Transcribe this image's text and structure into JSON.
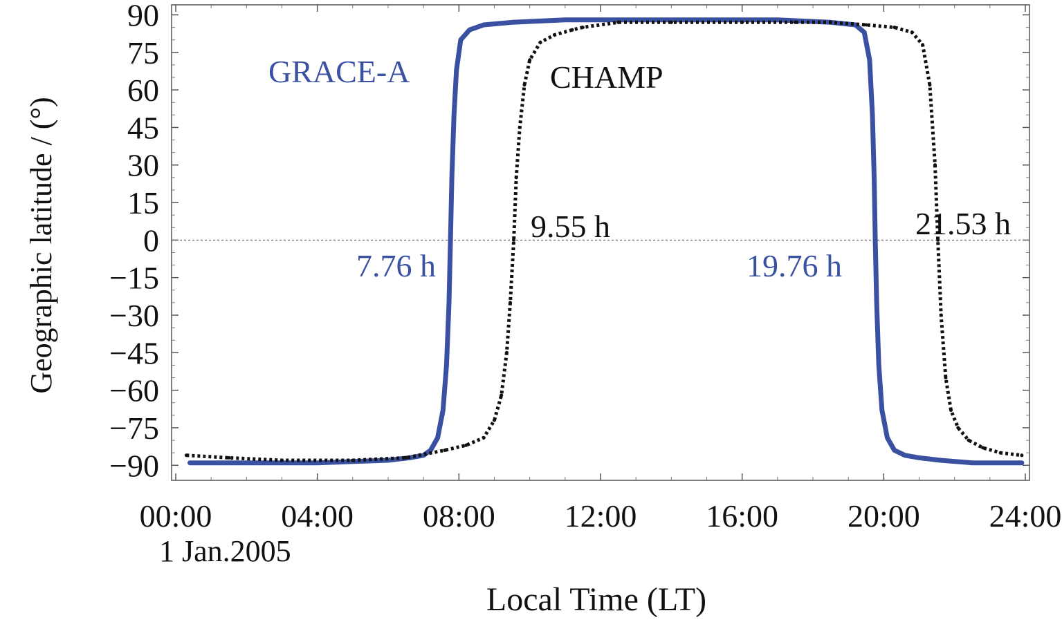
{
  "chart_data": {
    "type": "scatter",
    "title": "",
    "xlabel": "Local Time (LT)",
    "ylabel": "Geographic latitude / (°)",
    "date_label": "1 Jan.2005",
    "xlim": [
      0,
      24
    ],
    "ylim": [
      -96,
      94
    ],
    "x_ticks": [
      0,
      4,
      8,
      12,
      16,
      20,
      24
    ],
    "x_tick_labels": [
      "00:00",
      "04:00",
      "08:00",
      "12:00",
      "16:00",
      "20:00",
      "24:00"
    ],
    "y_ticks": [
      90,
      75,
      60,
      45,
      30,
      15,
      0,
      -15,
      -30,
      -45,
      -60,
      -75,
      -90
    ],
    "y_tick_labels": [
      "90",
      "75",
      "60",
      "45",
      "30",
      "15",
      "0",
      "−15",
      "−30",
      "−45",
      "−60",
      "−75",
      "−90"
    ],
    "zero_line": true,
    "series": [
      {
        "name": "GRACE-A",
        "color": "#3a50a0",
        "x": [
          0.4,
          2.0,
          4.0,
          6.0,
          6.6,
          7.0,
          7.2,
          7.4,
          7.55,
          7.65,
          7.72,
          7.76,
          7.8,
          7.86,
          7.93,
          8.05,
          8.3,
          8.7,
          9.5,
          11.0,
          13.0,
          15.0,
          17.0,
          18.5,
          19.2,
          19.45,
          19.6,
          19.68,
          19.73,
          19.76,
          19.8,
          19.86,
          19.95,
          20.1,
          20.3,
          20.6,
          21.0,
          21.6,
          22.5,
          23.9
        ],
        "y": [
          -89,
          -89,
          -89,
          -88,
          -87,
          -86,
          -84,
          -79,
          -68,
          -50,
          -25,
          0,
          25,
          50,
          68,
          80,
          84,
          86,
          87,
          88,
          88,
          88,
          88,
          87,
          86,
          83,
          72,
          50,
          25,
          0,
          -25,
          -50,
          -68,
          -79,
          -84,
          -86,
          -87,
          -88,
          -89,
          -89
        ]
      },
      {
        "name": "CHAMP",
        "color": "#111111",
        "x": [
          0.3,
          1.5,
          3.0,
          5.0,
          6.5,
          7.6,
          8.2,
          8.7,
          9.0,
          9.2,
          9.35,
          9.45,
          9.55,
          9.62,
          9.72,
          9.85,
          10.0,
          10.3,
          10.7,
          11.2,
          11.5,
          12.5,
          14.0,
          16.0,
          17.5,
          18.5,
          19.5,
          20.3,
          20.8,
          21.1,
          21.3,
          21.45,
          21.53,
          21.62,
          21.75,
          21.9,
          22.1,
          22.4,
          22.8,
          23.3,
          23.9
        ],
        "y": [
          -86,
          -87,
          -88,
          -88,
          -87,
          -84,
          -82,
          -79,
          -72,
          -62,
          -45,
          -25,
          0,
          25,
          45,
          62,
          72,
          79,
          82,
          84,
          85,
          87,
          87,
          87,
          87,
          87,
          86,
          85,
          83,
          78,
          62,
          30,
          0,
          -30,
          -55,
          -68,
          -75,
          -80,
          -83,
          -85,
          -86
        ]
      }
    ],
    "annotations": [
      {
        "text": "GRACE-A",
        "color": "#3a50a0"
      },
      {
        "text": "CHAMP",
        "color": "#111111"
      },
      {
        "text": "7.76 h",
        "color": "#3a50a0"
      },
      {
        "text": "9.55 h",
        "color": "#111111"
      },
      {
        "text": "19.76 h",
        "color": "#3a50a0"
      },
      {
        "text": "21.53 h",
        "color": "#111111"
      }
    ]
  }
}
